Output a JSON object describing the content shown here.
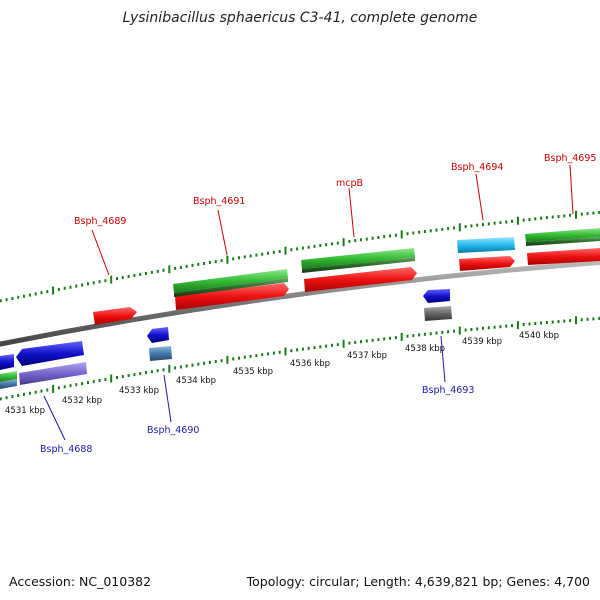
{
  "title": "Lysinibacillus sphaericus C3-41, complete genome",
  "footer": {
    "accession": "Accession: NC_010382",
    "topology": "Topology: circular; Length: 4,639,821 bp; Genes: 4,700"
  },
  "kbp_labels": [
    "4531 kbp",
    "4532 kbp",
    "4533 kbp",
    "4534 kbp",
    "4535 kbp",
    "4536 kbp",
    "4537 kbp",
    "4538 kbp",
    "4539 kbp",
    "4540 kbp"
  ],
  "gene_labels_top": [
    "Bsph_4689",
    "Bsph_4691",
    "mcpB",
    "Bsph_4694",
    "Bsph_4695"
  ],
  "gene_labels_bottom": [
    "Bsph_4688",
    "Bsph_4690",
    "Bsph_4693"
  ],
  "colors": {
    "red": "#ee1111",
    "green": "#33bb33",
    "dark_green": "#226622",
    "blue": "#1111cc",
    "light_blue": "#22bbee",
    "purple": "#7766cc",
    "steel_blue": "#4477aa",
    "gray": "#666666",
    "tick_green": "#1a7a1a",
    "backbone": "#888888"
  }
}
